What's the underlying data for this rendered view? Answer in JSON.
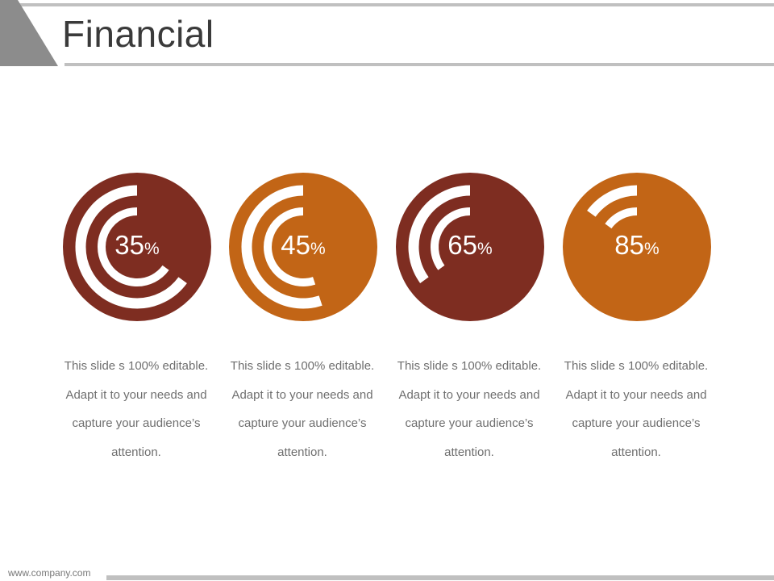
{
  "slide": {
    "title": "Financial",
    "footer_url": "www.company.com"
  },
  "colors": {
    "dark_red": "#7e2d21",
    "orange": "#c26516",
    "ring_white": "#ffffff",
    "accent_gray": "#c0c0c0",
    "triangle_gray": "#8c8c8c"
  },
  "cards": [
    {
      "value": 35,
      "number": "35",
      "symbol": "%",
      "color": "#7e2d21",
      "description": "This slide s 100% editable. Adapt it to your needs and capture your audience’s attention."
    },
    {
      "value": 45,
      "number": "45",
      "symbol": "%",
      "color": "#c26516",
      "description": "This slide s 100% editable. Adapt it to your needs and capture your audience’s attention."
    },
    {
      "value": 65,
      "number": "65",
      "symbol": "%",
      "color": "#7e2d21",
      "description": "This slide s 100% editable. Adapt it to your needs and capture your audience’s attention."
    },
    {
      "value": 85,
      "number": "85",
      "symbol": "%",
      "color": "#c26516",
      "description": "This slide s 100% editable. Adapt it to your needs and capture your audience’s attention."
    }
  ]
}
